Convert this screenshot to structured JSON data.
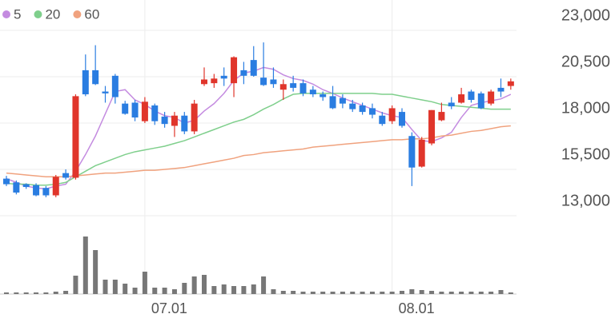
{
  "chart_data": {
    "type": "candlestick",
    "categories": [
      null,
      null,
      null,
      null,
      null,
      null,
      null,
      null,
      null,
      null,
      null,
      null,
      null,
      null,
      "07.01",
      null,
      null,
      null,
      null,
      null,
      null,
      null,
      null,
      null,
      null,
      null,
      null,
      null,
      null,
      null,
      null,
      null,
      null,
      null,
      null,
      null,
      null,
      null,
      null,
      "08.01",
      null,
      null,
      null,
      null,
      null,
      null,
      null,
      null,
      null,
      null,
      null,
      null
    ],
    "open": [
      15000,
      14800,
      14700,
      14650,
      14500,
      14100,
      15300,
      15050,
      20850,
      20850,
      19700,
      20550,
      19050,
      19100,
      18100,
      18950,
      18350,
      17850,
      18400,
      17550,
      20100,
      20150,
      20550,
      20150,
      20850,
      21400,
      20450,
      20350,
      19800,
      20150,
      20150,
      19800,
      19550,
      19450,
      19350,
      19050,
      18950,
      18800,
      18400,
      18100,
      18600,
      17300,
      15650,
      16900,
      18150,
      19100,
      19100,
      19700,
      19600,
      19050,
      19900,
      20000
    ],
    "high": [
      15150,
      14900,
      14750,
      14750,
      14600,
      15200,
      15500,
      19550,
      21700,
      22200,
      20000,
      20650,
      19200,
      19250,
      19400,
      19050,
      18600,
      18600,
      18600,
      19250,
      21000,
      20650,
      21000,
      21600,
      21300,
      22150,
      22350,
      21000,
      20350,
      20550,
      20350,
      20000,
      19700,
      20000,
      19550,
      19250,
      19100,
      19050,
      18600,
      18950,
      18800,
      17500,
      17250,
      18700,
      19100,
      19400,
      19900,
      19800,
      19700,
      19800,
      20400,
      20400
    ],
    "low": [
      14600,
      14150,
      14450,
      14050,
      14000,
      14000,
      14950,
      14950,
      19450,
      20050,
      19100,
      19050,
      18450,
      18100,
      18000,
      17900,
      17750,
      17250,
      17400,
      17400,
      20000,
      19900,
      20000,
      19400,
      20100,
      20500,
      20000,
      19900,
      19250,
      19700,
      19450,
      19400,
      19200,
      18750,
      18800,
      18600,
      18450,
      18250,
      17850,
      17950,
      17750,
      14600,
      15600,
      16800,
      18100,
      18750,
      19050,
      19100,
      18750,
      18950,
      19400,
      19800
    ],
    "close": [
      14700,
      14250,
      14550,
      14100,
      14100,
      15100,
      15050,
      19450,
      19550,
      20100,
      19600,
      19400,
      18500,
      18300,
      19150,
      18100,
      17950,
      18400,
      17550,
      19050,
      20350,
      20400,
      20400,
      21550,
      20550,
      20550,
      20050,
      20100,
      20100,
      19900,
      19600,
      19550,
      19400,
      18800,
      19050,
      18750,
      18600,
      18450,
      17950,
      18800,
      17850,
      15600,
      17100,
      18700,
      18600,
      18900,
      19550,
      19250,
      18800,
      19700,
      19700,
      20250
    ],
    "up_color": "#e0352b",
    "down_color": "#2a7de1",
    "ylim": [
      13000,
      23000
    ],
    "yticks": [
      {
        "value": 23000,
        "label": "23,000"
      },
      {
        "value": 20500,
        "label": "20,500"
      },
      {
        "value": 18000,
        "label": "18,000"
      },
      {
        "value": 15500,
        "label": "15,500"
      },
      {
        "value": 13000,
        "label": "13,000"
      }
    ],
    "grid": true,
    "series": [
      {
        "name": "5",
        "color": "#c48be0",
        "values": [
          15000,
          14800,
          14600,
          14500,
          14450,
          14600,
          14700,
          15400,
          16300,
          17300,
          18500,
          19700,
          19800,
          19250,
          19000,
          18650,
          18400,
          18300,
          18000,
          18150,
          18650,
          19050,
          19600,
          20300,
          20700,
          20800,
          21000,
          20900,
          20600,
          20400,
          20300,
          20100,
          19800,
          19600,
          19350,
          19150,
          18950,
          18750,
          18550,
          18400,
          18300,
          17650,
          17050,
          17000,
          17200,
          17500,
          18300,
          18950,
          19100,
          19200,
          19300,
          19550
        ]
      },
      {
        "name": "20",
        "color": "#7fcf8c",
        "values": [
          14750,
          14700,
          14700,
          14650,
          14650,
          14700,
          14800,
          15100,
          15400,
          15700,
          15900,
          16100,
          16300,
          16450,
          16550,
          16650,
          16750,
          16900,
          17050,
          17250,
          17450,
          17650,
          17850,
          18050,
          18200,
          18450,
          18750,
          19000,
          19300,
          19550,
          19600,
          19600,
          19600,
          19600,
          19600,
          19600,
          19600,
          19600,
          19550,
          19550,
          19450,
          19350,
          19250,
          19150,
          19000,
          18950,
          18900,
          18850,
          18800,
          18750,
          18750,
          18750
        ]
      },
      {
        "name": "60",
        "color": "#f0a27e",
        "values": [
          15300,
          15250,
          15200,
          15150,
          15100,
          15100,
          15100,
          15150,
          15200,
          15250,
          15300,
          15300,
          15350,
          15400,
          15450,
          15450,
          15500,
          15550,
          15600,
          15700,
          15800,
          15900,
          16000,
          16100,
          16250,
          16300,
          16400,
          16450,
          16500,
          16550,
          16600,
          16700,
          16750,
          16800,
          16850,
          16900,
          16950,
          17000,
          17050,
          17100,
          17100,
          17150,
          17150,
          17200,
          17300,
          17350,
          17450,
          17550,
          17600,
          17700,
          17800,
          17850
        ]
      }
    ],
    "volume": {
      "color": "#777777",
      "ylim": [
        0,
        88
      ],
      "values": [
        2,
        2,
        2,
        2,
        2,
        3,
        4,
        23,
        72,
        55,
        18,
        18,
        13,
        8,
        28,
        8,
        8,
        6,
        14,
        22,
        24,
        10,
        12,
        10,
        10,
        12,
        22,
        6,
        4,
        4,
        3,
        3,
        3,
        3,
        3,
        3,
        3,
        3,
        3,
        3,
        4,
        6,
        5,
        4,
        3,
        3,
        3,
        3,
        3,
        3,
        5,
        2
      ]
    }
  }
}
